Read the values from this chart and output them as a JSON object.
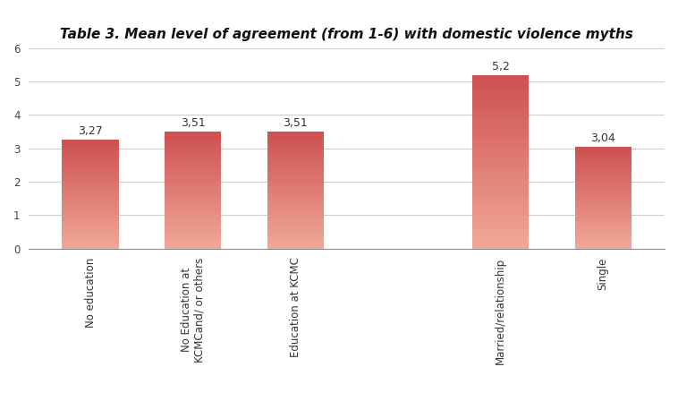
{
  "title": "Table 3. Mean level of agreement (from 1-6) with domestic violence myths",
  "categories": [
    "No education",
    "No Education at\nKCMCand/ or others",
    "Education at KCMC",
    "Married/relationship",
    "Single"
  ],
  "x_positions": [
    0,
    1,
    2,
    4,
    5
  ],
  "values": [
    3.27,
    3.51,
    3.51,
    5.2,
    3.04
  ],
  "value_labels": [
    "3,27",
    "3,51",
    "3,51",
    "5,2",
    "3,04"
  ],
  "bar_color_dark": "#cd4f4f",
  "bar_color_light": "#f0a898",
  "ylim": [
    0,
    6
  ],
  "yticks": [
    0,
    1,
    2,
    3,
    4,
    5,
    6
  ],
  "title_fontsize": 11,
  "tick_fontsize": 8.5,
  "value_fontsize": 9,
  "background_color": "#ffffff",
  "bar_width": 0.55,
  "xlim": [
    -0.6,
    5.6
  ]
}
